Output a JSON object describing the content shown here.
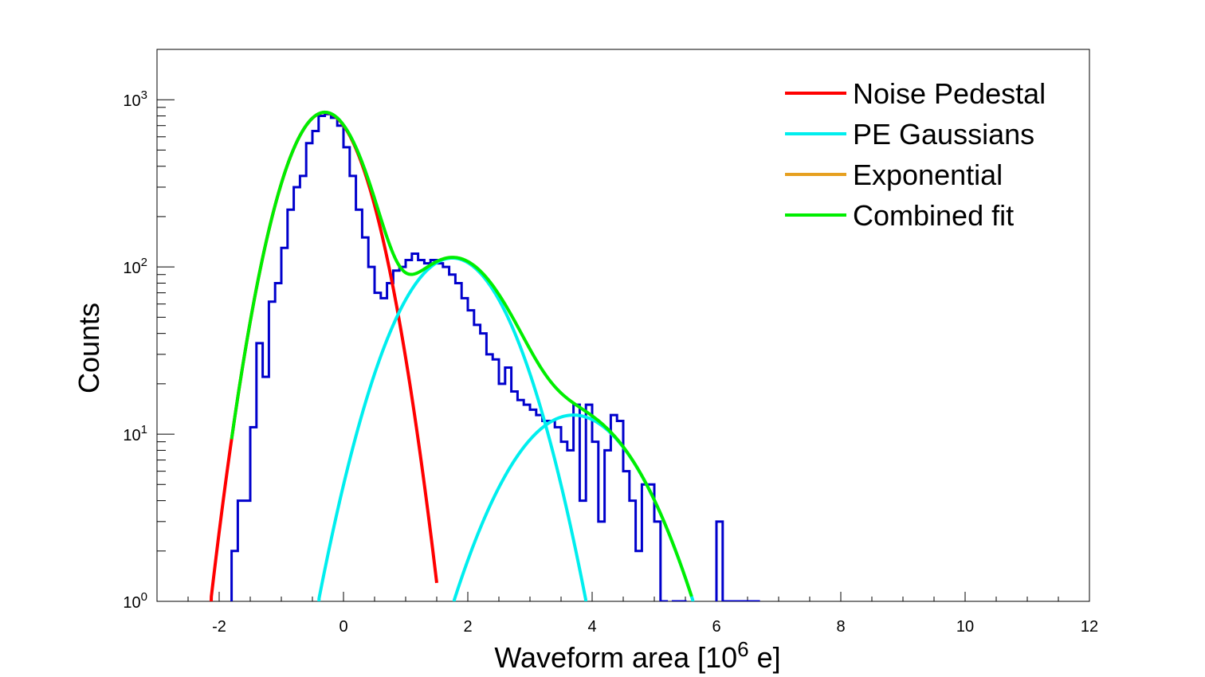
{
  "chart_data": {
    "type": "histogram",
    "xlabel_prefix": "Waveform area [10",
    "xlabel_exp": "6",
    "xlabel_suffix": " e]",
    "ylabel": "Counts",
    "xlim": [
      -3,
      12
    ],
    "ylim": [
      1,
      2000
    ],
    "yscale": "log",
    "x_ticks": [
      "-2",
      "0",
      "2",
      "4",
      "6",
      "8",
      "10",
      "12"
    ],
    "x_tick_values": [
      -2,
      0,
      2,
      4,
      6,
      8,
      10,
      12
    ],
    "y_ticks": [
      {
        "base": "10",
        "exp": "0",
        "value": 1
      },
      {
        "base": "10",
        "exp": "1",
        "value": 10
      },
      {
        "base": "10",
        "exp": "2",
        "value": 100
      },
      {
        "base": "10",
        "exp": "3",
        "value": 1000
      }
    ],
    "colors": {
      "histogram": "#0000cc",
      "noise": "#ff0000",
      "pe": "#00eeee",
      "exponential": "#e6a020",
      "combined": "#00ee00"
    },
    "legend": [
      {
        "label": "Noise Pedestal",
        "color": "#ff0000"
      },
      {
        "label": "PE Gaussians",
        "color": "#00eeee"
      },
      {
        "label": "Exponential",
        "color": "#e6a020"
      },
      {
        "label": "Combined fit",
        "color": "#00ee00"
      }
    ],
    "legend_position": "top-right",
    "histogram": {
      "bin_start": -1.8,
      "bin_width": 0.1,
      "counts": [
        2,
        4,
        4,
        11,
        35,
        22,
        62,
        80,
        130,
        220,
        300,
        350,
        550,
        650,
        800,
        820,
        780,
        700,
        520,
        350,
        220,
        150,
        100,
        70,
        65,
        80,
        95,
        100,
        110,
        120,
        110,
        105,
        110,
        105,
        100,
        90,
        80,
        65,
        55,
        45,
        40,
        30,
        28,
        20,
        25,
        18,
        16,
        15,
        14,
        13,
        12,
        12,
        11,
        9,
        8,
        15,
        4,
        15,
        9,
        3,
        8,
        13,
        12,
        6,
        4,
        2,
        5,
        5,
        3,
        1,
        0,
        1,
        1,
        0,
        0,
        0,
        0,
        0,
        3,
        1,
        1,
        1,
        1,
        1,
        1
      ]
    },
    "noise_gaussian": {
      "amplitude": 840,
      "mean": -0.3,
      "sigma": 0.5
    },
    "pe_gaussians": [
      {
        "amplitude": 113,
        "mean": 1.75,
        "sigma": 0.7
      },
      {
        "amplitude": 13,
        "mean": 3.7,
        "sigma": 0.85
      }
    ],
    "combined_range": [
      -1.8,
      5.6
    ]
  }
}
